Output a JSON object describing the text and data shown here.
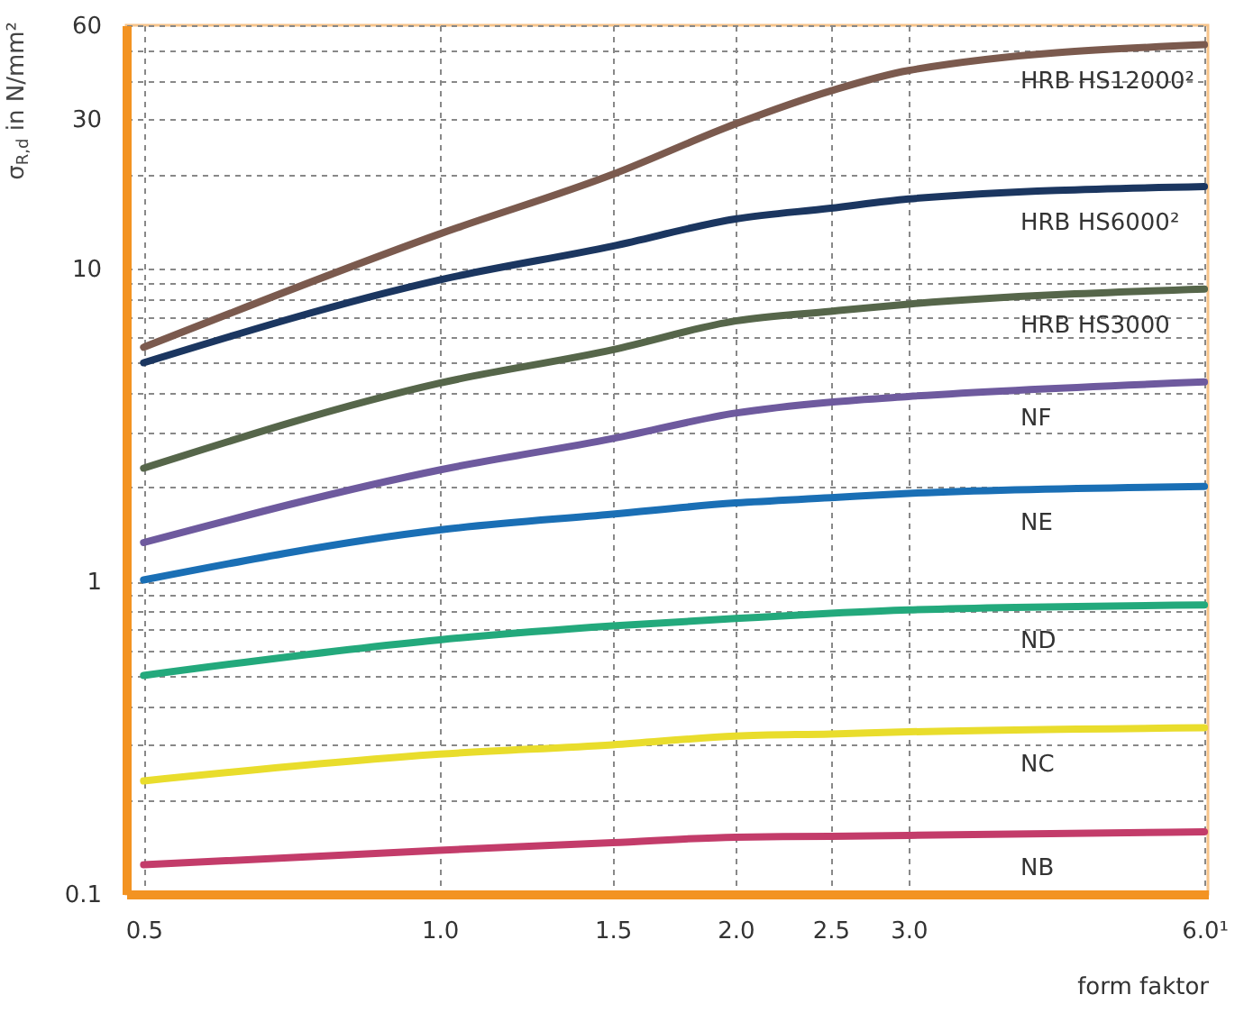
{
  "chart_data": {
    "type": "line",
    "xlabel": "form faktor",
    "ylabel": "σ$_{R,d}$ in N/mm²",
    "log": "xy",
    "grid": true,
    "line_style": "solid",
    "marker": "none",
    "x": [
      0.5,
      1.0,
      1.5,
      2.0,
      2.5,
      3.0,
      6.0
    ],
    "xlim": [
      0.48,
      6.05
    ],
    "xticks": [
      {
        "value": 0.5,
        "label": "0.5"
      },
      {
        "value": 1,
        "label": "1.0"
      },
      {
        "value": 1.5,
        "label": "1.5"
      },
      {
        "value": 2,
        "label": "2.0"
      },
      {
        "value": 2.5,
        "label": "2.5"
      },
      {
        "value": 3,
        "label": "3.0"
      },
      {
        "value": 6,
        "label": "6.0¹"
      }
    ],
    "ylim": [
      0.1,
      60
    ],
    "yticks": [
      {
        "value": 0.1,
        "label": "0.1"
      },
      {
        "value": 0.2,
        "label": null
      },
      {
        "value": 0.3,
        "label": null
      },
      {
        "value": 0.4,
        "label": null
      },
      {
        "value": 0.5,
        "label": null
      },
      {
        "value": 0.6,
        "label": null
      },
      {
        "value": 0.7,
        "label": null
      },
      {
        "value": 0.8,
        "label": null
      },
      {
        "value": 0.9,
        "label": null
      },
      {
        "value": 1,
        "label": "1"
      },
      {
        "value": 2,
        "label": null
      },
      {
        "value": 3,
        "label": null
      },
      {
        "value": 4,
        "label": null
      },
      {
        "value": 5,
        "label": null
      },
      {
        "value": 6,
        "label": null
      },
      {
        "value": 7,
        "label": null
      },
      {
        "value": 8,
        "label": null
      },
      {
        "value": 9,
        "label": null
      },
      {
        "value": 10,
        "label": "10"
      },
      {
        "value": 20,
        "label": null
      },
      {
        "value": 30,
        "label": "30"
      },
      {
        "value": 40,
        "label": null
      },
      {
        "value": 50,
        "label": null
      },
      {
        "value": 60,
        "label": "60"
      }
    ],
    "series": [
      {
        "name": "HRB HS12000²",
        "color": "#7b5a4e",
        "values": [
          5.6,
          12.9,
          20,
          29,
          37,
          43,
          52
        ]
      },
      {
        "name": "HRB HS6000²",
        "color": "#1b3660",
        "values": [
          5.0,
          9.2,
          11.8,
          14.4,
          15.6,
          16.7,
          18.3
        ]
      },
      {
        "name": "HRB HS3000",
        "color": "#56664a",
        "values": [
          2.3,
          4.3,
          5.5,
          6.8,
          7.3,
          7.7,
          8.6
        ]
      },
      {
        "name": "NF",
        "color": "#6e5a9e",
        "values": [
          1.33,
          2.27,
          2.86,
          3.45,
          3.74,
          3.9,
          4.34
        ]
      },
      {
        "name": "NE",
        "color": "#1a6fb5",
        "values": [
          1.01,
          1.46,
          1.64,
          1.78,
          1.85,
          1.91,
          2.01
        ]
      },
      {
        "name": "ND",
        "color": "#23a97c",
        "values": [
          0.5,
          0.65,
          0.72,
          0.76,
          0.79,
          0.81,
          0.84
        ]
      },
      {
        "name": "NC",
        "color": "#e9dd2c",
        "values": [
          0.23,
          0.28,
          0.3,
          0.32,
          0.325,
          0.33,
          0.34
        ]
      },
      {
        "name": "NB",
        "color": "#c33c6a",
        "values": [
          0.124,
          0.138,
          0.146,
          0.152,
          0.153,
          0.154,
          0.158
        ]
      }
    ]
  }
}
